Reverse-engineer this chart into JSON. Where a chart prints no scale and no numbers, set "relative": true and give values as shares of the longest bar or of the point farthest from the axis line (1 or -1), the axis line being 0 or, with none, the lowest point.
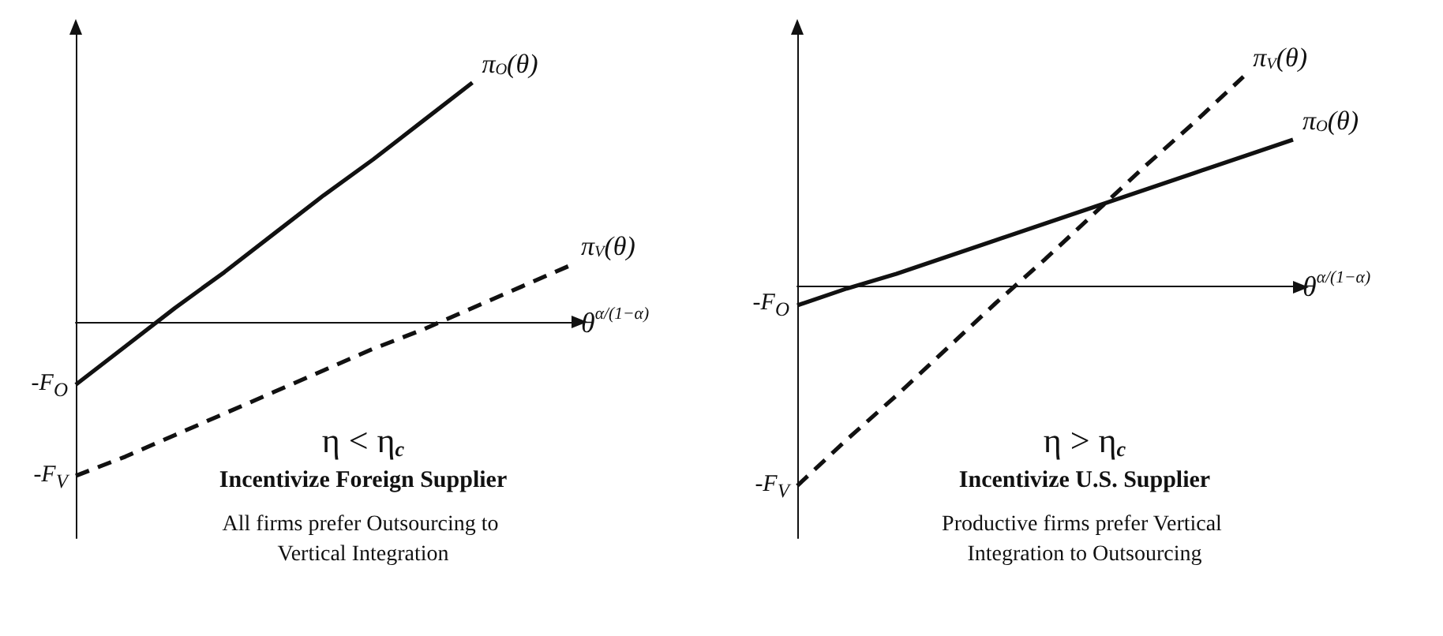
{
  "chart_data": [
    {
      "type": "line",
      "relative": true,
      "title": "Incentivize Foreign Supplier",
      "subtitle": "All firms prefer Outsourcing to Vertical Integration",
      "xlabel": "θ$^{α/(1−α)}$",
      "categories": [
        null,
        null,
        null,
        null,
        null,
        null,
        null,
        null,
        null,
        null,
        null
      ],
      "series": [
        {
          "name": "π$_{O}$(θ)",
          "color": "#111111",
          "line_style": "solid",
          "values": [
            -0.26,
            -0.1,
            0.06,
            0.21,
            0.37,
            0.53,
            0.68,
            0.84,
            1.0,
            null,
            null
          ]
        },
        {
          "name": "π$_{V}$(θ)",
          "color": "#111111",
          "line_style": "dashed",
          "values": [
            -0.64,
            -0.56,
            -0.47,
            -0.38,
            -0.29,
            -0.2,
            -0.11,
            -0.03,
            0.06,
            0.15,
            0.24
          ]
        }
      ],
      "annotations": [
        "η < η$_{c}$",
        "-F$_{O}$",
        "-F$_{V}$"
      ],
      "grid": false,
      "legend": false,
      "marker": "none"
    },
    {
      "type": "line",
      "relative": true,
      "title": "Incentivize U.S. Supplier",
      "subtitle": "Productive firms prefer Vertical Integration to Outsourcing",
      "xlabel": "θ$^{α/(1−α)}$",
      "categories": [
        null,
        null,
        null,
        null,
        null,
        null,
        null,
        null,
        null,
        null,
        null
      ],
      "series": [
        {
          "name": "π$_{V}$(θ)",
          "color": "#111111",
          "line_style": "dashed",
          "values": [
            -0.95,
            -0.73,
            -0.52,
            -0.3,
            -0.08,
            0.13,
            0.35,
            0.57,
            0.78,
            1.0,
            null
          ]
        },
        {
          "name": "π$_{O}$(θ)",
          "color": "#111111",
          "line_style": "solid",
          "values": [
            -0.09,
            -0.01,
            0.06,
            0.14,
            0.22,
            0.3,
            0.38,
            0.46,
            0.54,
            0.62,
            0.7
          ]
        }
      ],
      "annotations": [
        "η > η$_{c}$",
        "-F$_{V}$",
        "-F$_{O}$"
      ],
      "grid": false,
      "legend": false,
      "marker": "none"
    }
  ]
}
